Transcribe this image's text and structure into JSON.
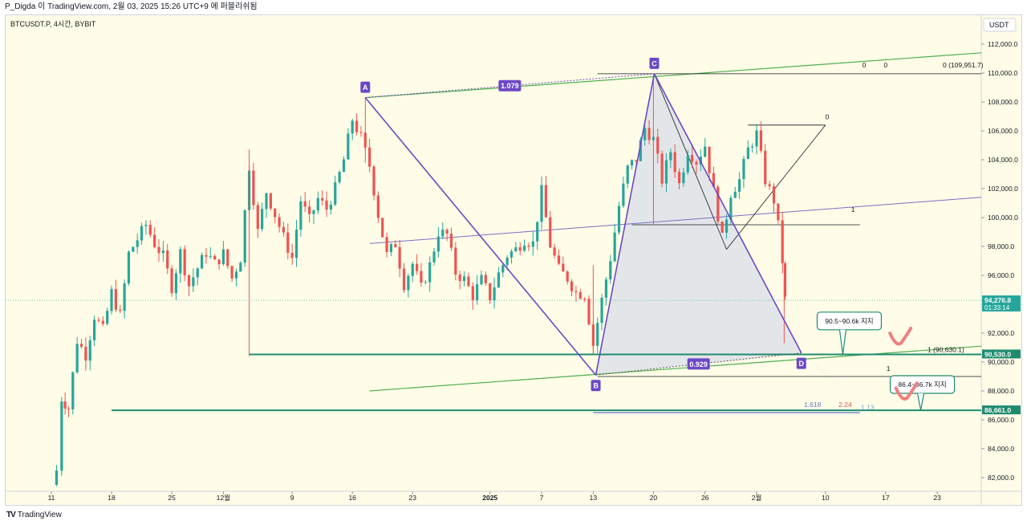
{
  "header": {
    "publish_text": "P_Digda 이 TradingView.com, 2월 03, 2025 15:26 UTC+9 에 퍼블리쉬됨"
  },
  "footer": {
    "brand": "TradingView",
    "brand_mark": "TV"
  },
  "chart_data": {
    "type": "candlestick",
    "symbol_label": "BTCUSDT.P, 4시간, BYBIT",
    "currency": "USDT",
    "y_ticks": [
      "112,000.0",
      "110,000.0",
      "108,000.0",
      "106,000.0",
      "104,000.0",
      "102,000.0",
      "100,000.0",
      "98,000.0",
      "96,000.0",
      "94,000.0",
      "92,000.0",
      "90,000.0",
      "88,000.0",
      "86,000.0",
      "84,000.0",
      "82,000.0"
    ],
    "y_tick_values": [
      112000,
      110000,
      108000,
      106000,
      104000,
      102000,
      100000,
      98000,
      96000,
      94000,
      92000,
      90000,
      88000,
      86000,
      84000,
      82000
    ],
    "ylim": [
      81000,
      115000
    ],
    "x_ticks": [
      {
        "label": "11",
        "day": 0
      },
      {
        "label": "18",
        "day": 7
      },
      {
        "label": "25",
        "day": 14
      },
      {
        "label": "12월",
        "day": 20
      },
      {
        "label": "9",
        "day": 28
      },
      {
        "label": "16",
        "day": 35
      },
      {
        "label": "23",
        "day": 42
      },
      {
        "label": "2025",
        "day": 51
      },
      {
        "label": "7",
        "day": 57
      },
      {
        "label": "13",
        "day": 63
      },
      {
        "label": "20",
        "day": 70
      },
      {
        "label": "26",
        "day": 76
      },
      {
        "label": "2월",
        "day": 82
      },
      {
        "label": "10",
        "day": 90
      },
      {
        "label": "17",
        "day": 97
      },
      {
        "label": "23",
        "day": 103
      }
    ],
    "price_path": [
      [
        0,
        81500
      ],
      [
        0.6,
        82500
      ],
      [
        1.2,
        87500
      ],
      [
        2,
        86800
      ],
      [
        3,
        91500
      ],
      [
        4,
        90500
      ],
      [
        5,
        93200
      ],
      [
        6,
        92200
      ],
      [
        7,
        94800
      ],
      [
        8,
        93200
      ],
      [
        9,
        97500
      ],
      [
        10,
        98500
      ],
      [
        11,
        99500
      ],
      [
        12,
        98200
      ],
      [
        13,
        97300
      ],
      [
        14,
        95200
      ],
      [
        15,
        97600
      ],
      [
        16,
        95300
      ],
      [
        17,
        96500
      ],
      [
        18,
        97600
      ],
      [
        19,
        96800
      ],
      [
        20,
        97500
      ],
      [
        21,
        95800
      ],
      [
        22,
        97200
      ],
      [
        23,
        103600
      ],
      [
        24,
        99000
      ],
      [
        25,
        101800
      ],
      [
        26,
        100200
      ],
      [
        27,
        98600
      ],
      [
        28,
        97200
      ],
      [
        29,
        101200
      ],
      [
        30,
        99800
      ],
      [
        31,
        101300
      ],
      [
        32,
        100600
      ],
      [
        33,
        102000
      ],
      [
        34,
        104000
      ],
      [
        35,
        106800
      ],
      [
        36,
        105500
      ],
      [
        37,
        103600
      ],
      [
        38,
        100200
      ],
      [
        39,
        97400
      ],
      [
        40,
        98200
      ],
      [
        41,
        95400
      ],
      [
        42,
        96800
      ],
      [
        43,
        95100
      ],
      [
        44,
        96700
      ],
      [
        45,
        99000
      ],
      [
        46,
        98800
      ],
      [
        47,
        96200
      ],
      [
        48,
        95700
      ],
      [
        49,
        94600
      ],
      [
        50,
        95700
      ],
      [
        51,
        94500
      ],
      [
        52,
        96100
      ],
      [
        53,
        97400
      ],
      [
        54,
        97800
      ],
      [
        55,
        98500
      ],
      [
        56,
        98200
      ],
      [
        57,
        101800
      ],
      [
        58,
        98100
      ],
      [
        59,
        96400
      ],
      [
        60,
        95800
      ],
      [
        61,
        94800
      ],
      [
        62,
        94700
      ],
      [
        63,
        91200
      ],
      [
        64,
        94300
      ],
      [
        65,
        97200
      ],
      [
        66,
        100800
      ],
      [
        67,
        103400
      ],
      [
        68,
        104100
      ],
      [
        69,
        106200
      ],
      [
        70,
        105400
      ],
      [
        71,
        102600
      ],
      [
        72,
        104600
      ],
      [
        73,
        102300
      ],
      [
        74,
        104700
      ],
      [
        75,
        103900
      ],
      [
        76,
        105000
      ],
      [
        77,
        101800
      ],
      [
        78,
        98500
      ],
      [
        79,
        101700
      ],
      [
        80,
        102600
      ],
      [
        81,
        104700
      ],
      [
        82,
        105800
      ],
      [
        83,
        102600
      ],
      [
        84,
        101200
      ],
      [
        84.5,
        99400
      ],
      [
        85,
        97000
      ],
      [
        85.3,
        94300
      ]
    ],
    "wicks": [
      {
        "day": 23,
        "high": 104700,
        "low": 90400
      },
      {
        "day": 36.5,
        "high": 108300,
        "low": 103800
      },
      {
        "day": 63,
        "high": 96700,
        "low": 90600
      },
      {
        "day": 70,
        "high": 109700,
        "low": 99500
      },
      {
        "day": 85.2,
        "high": 95600,
        "low": 91300
      }
    ],
    "current_price": {
      "value": 94276.8,
      "label": "94,276.8",
      "countdown": "01:33:14"
    },
    "support_lines": [
      {
        "price": 90530.0,
        "label": "90,530.0",
        "from_day": 23
      },
      {
        "price": 86661.0,
        "label": "86,661.0",
        "from_day": 7
      }
    ],
    "xabcd_points": [
      {
        "label": "A",
        "day": 36.5,
        "price": 108300
      },
      {
        "label": "B",
        "day": 63.3,
        "price": 89100
      },
      {
        "label": "C",
        "day": 70.1,
        "price": 109951.7
      },
      {
        "label": "D",
        "day": 87.2,
        "price": 90630.1
      }
    ],
    "ratios": [
      {
        "label": "1.079",
        "value": 1.079
      },
      {
        "label": "0.929",
        "value": 0.929
      }
    ],
    "fib_labels": [
      {
        "text": "0",
        "day": 94.5,
        "price": 110400
      },
      {
        "text": "0",
        "day": 97,
        "price": 110400
      },
      {
        "text": "0 (109,951.7)",
        "day": 106,
        "price": 110400
      },
      {
        "text": "0",
        "day": 90.2,
        "price": 106800
      },
      {
        "text": "1",
        "day": 93.2,
        "price": 100400
      },
      {
        "text": "1 (90,630.1)",
        "day": 104,
        "price": 90700
      },
      {
        "text": "1",
        "day": 97.3,
        "price": 89400
      },
      {
        "text": "1.618",
        "day": 88.5,
        "price": 86900
      },
      {
        "text": "2.24",
        "day": 92.3,
        "price": 86900
      },
      {
        "text": "1.13",
        "day": 94.9,
        "price": 86700
      }
    ],
    "annotations": [
      {
        "text": "90.5~90.6k 지지",
        "day": 89.5,
        "price": 92900
      },
      {
        "text": "86.4~86.7k 지지",
        "day": 98,
        "price": 88500
      }
    ],
    "colors": {
      "up": "#26a69a",
      "down": "#ef5350",
      "pattern": "#6c48c5",
      "support": "#1f8a70",
      "trend": "#4caf50",
      "mark": "#ef7f7f",
      "bg": "#fffde7"
    }
  }
}
